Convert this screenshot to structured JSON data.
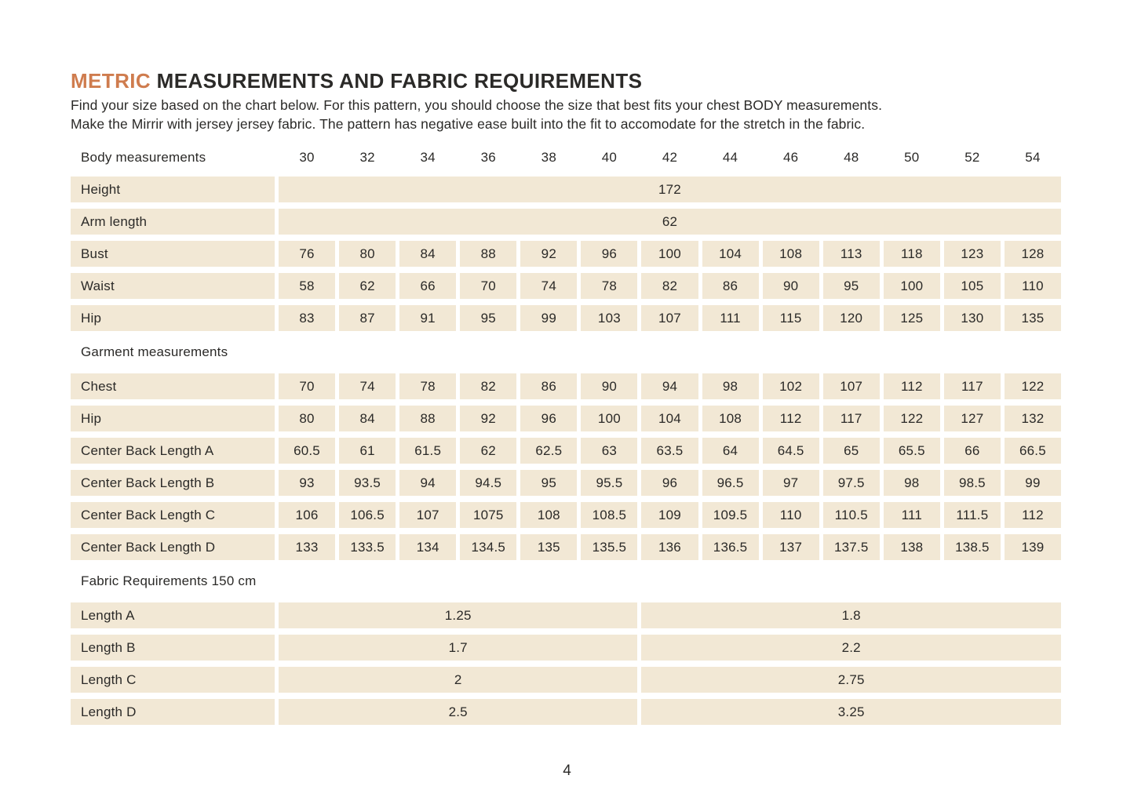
{
  "title": {
    "accent": "METRIC",
    "rest": " MEASUREMENTS AND FABRIC REQUIREMENTS"
  },
  "intro": {
    "line1": "Find your size based on the chart below. For this pattern, you should choose the size that best fits your chest BODY measurements.",
    "line2": "Make the Mirrir with jersey jersey fabric. The pattern has negative ease built into the fit to accomodate for the stretch in the fabric."
  },
  "colors": {
    "accent_orange": "#cf7c4e",
    "cell_beige": "#f2e8d5",
    "text_dark": "#2b2a28",
    "page_background": "#ffffff"
  },
  "page_number": "4",
  "table": {
    "header_label": "Body measurements",
    "sizes": [
      "30",
      "32",
      "34",
      "36",
      "38",
      "40",
      "42",
      "44",
      "46",
      "48",
      "50",
      "52",
      "54"
    ],
    "sections": [
      {
        "heading": null,
        "rows": [
          {
            "label": "Height",
            "span_value": "172"
          },
          {
            "label": "Arm length",
            "span_value": "62"
          },
          {
            "label": "Bust",
            "values": [
              "76",
              "80",
              "84",
              "88",
              "92",
              "96",
              "100",
              "104",
              "108",
              "113",
              "118",
              "123",
              "128"
            ]
          },
          {
            "label": "Waist",
            "values": [
              "58",
              "62",
              "66",
              "70",
              "74",
              "78",
              "82",
              "86",
              "90",
              "95",
              "100",
              "105",
              "110"
            ]
          },
          {
            "label": "Hip",
            "values": [
              "83",
              "87",
              "91",
              "95",
              "99",
              "103",
              "107",
              "111",
              "115",
              "120",
              "125",
              "130",
              "135"
            ]
          }
        ]
      },
      {
        "heading": "Garment measurements",
        "rows": [
          {
            "label": "Chest",
            "values": [
              "70",
              "74",
              "78",
              "82",
              "86",
              "90",
              "94",
              "98",
              "102",
              "107",
              "112",
              "117",
              "122"
            ]
          },
          {
            "label": "Hip",
            "values": [
              "80",
              "84",
              "88",
              "92",
              "96",
              "100",
              "104",
              "108",
              "112",
              "117",
              "122",
              "127",
              "132"
            ]
          },
          {
            "label": "Center Back Length A",
            "values": [
              "60.5",
              "61",
              "61.5",
              "62",
              "62.5",
              "63",
              "63.5",
              "64",
              "64.5",
              "65",
              "65.5",
              "66",
              "66.5"
            ]
          },
          {
            "label": "Center Back Length B",
            "values": [
              "93",
              "93.5",
              "94",
              "94.5",
              "95",
              "95.5",
              "96",
              "96.5",
              "97",
              "97.5",
              "98",
              "98.5",
              "99"
            ]
          },
          {
            "label": "Center Back Length C",
            "values": [
              "106",
              "106.5",
              "107",
              "1075",
              "108",
              "108.5",
              "109",
              "109.5",
              "110",
              "110.5",
              "111",
              "111.5",
              "112"
            ]
          },
          {
            "label": "Center Back Length D",
            "values": [
              "133",
              "133.5",
              "134",
              "134.5",
              "135",
              "135.5",
              "136",
              "136.5",
              "137",
              "137.5",
              "138",
              "138.5",
              "139"
            ]
          }
        ]
      },
      {
        "heading": "Fabric Requirements 150 cm",
        "rows": [
          {
            "label": "Length A",
            "left_value": "1.25",
            "right_value": "1.8"
          },
          {
            "label": "Length B",
            "left_value": "1.7",
            "right_value": "2.2"
          },
          {
            "label": "Length C",
            "left_value": "2",
            "right_value": "2.75"
          },
          {
            "label": "Length D",
            "left_value": "2.5",
            "right_value": "3.25"
          }
        ]
      }
    ]
  }
}
